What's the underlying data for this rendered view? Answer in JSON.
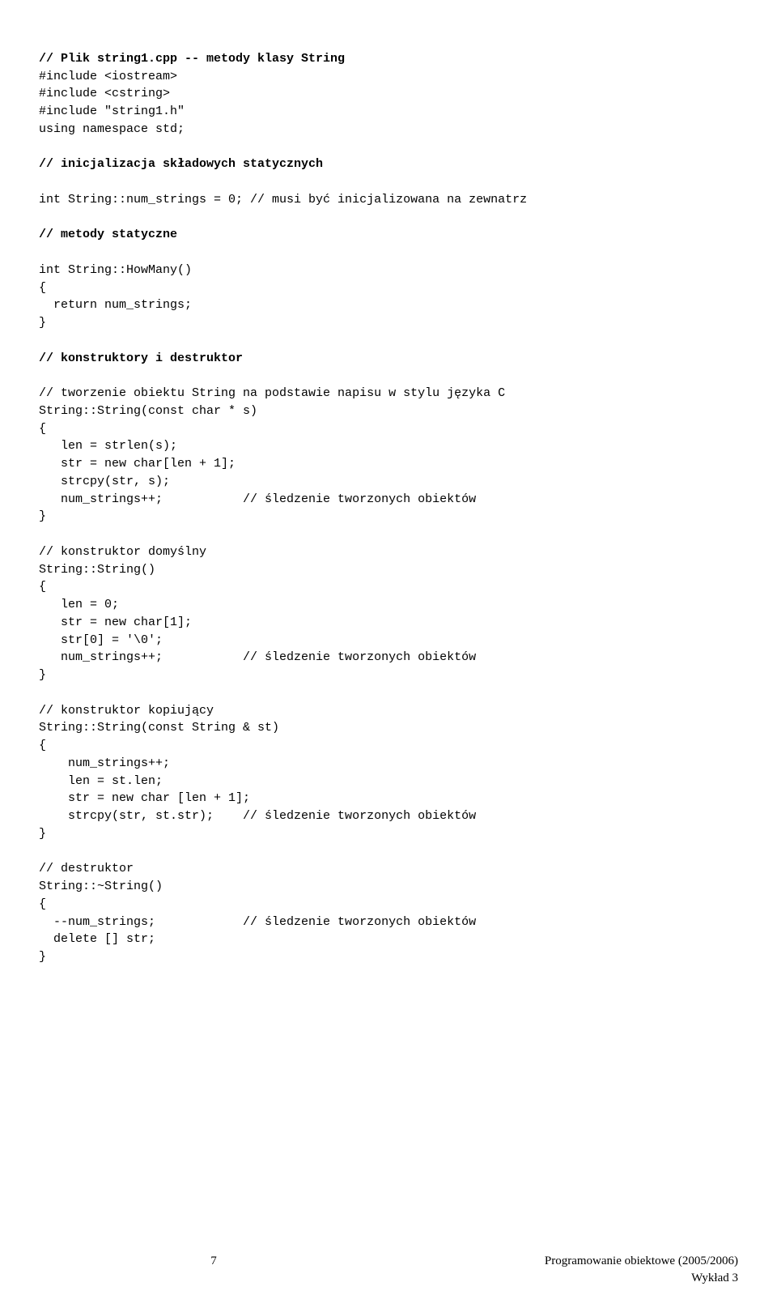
{
  "code": {
    "l1": "// Plik string1.cpp -- metody klasy String",
    "l2": "#include <iostream>",
    "l3": "#include <cstring>",
    "l4": "#include \"string1.h\"",
    "l5": "using namespace std;",
    "l6": "",
    "l7": "// inicjalizacja składowych statycznych",
    "l8": "",
    "l9": "int String::num_strings = 0; // musi być inicjalizowana na zewnatrz",
    "l10": "",
    "l11": "// metody statyczne",
    "l12": "",
    "l13": "int String::HowMany()",
    "l14": "{",
    "l15": "  return num_strings;",
    "l16": "}",
    "l17": "",
    "l18": "// konstruktory i destruktor",
    "l19": "",
    "l20": "// tworzenie obiektu String na podstawie napisu w stylu języka C",
    "l21": "String::String(const char * s)",
    "l22": "{",
    "l23": "   len = strlen(s);",
    "l24": "   str = new char[len + 1];",
    "l25": "   strcpy(str, s);",
    "l26": "   num_strings++;           // śledzenie tworzonych obiektów",
    "l27": "}",
    "l28": "",
    "l29": "// konstruktor domyślny",
    "l30": "String::String()",
    "l31": "{",
    "l32": "   len = 0;",
    "l33": "   str = new char[1];",
    "l34": "   str[0] = '\\0';",
    "l35": "   num_strings++;           // śledzenie tworzonych obiektów",
    "l36": "}",
    "l37": "",
    "l38": "// konstruktor kopiujący",
    "l39": "String::String(const String & st)",
    "l40": "{",
    "l41": "    num_strings++;",
    "l42": "    len = st.len;",
    "l43": "    str = new char [len + 1];",
    "l44": "    strcpy(str, st.str);    // śledzenie tworzonych obiektów",
    "l45": "}",
    "l46": "",
    "l47": "// destruktor",
    "l48": "String::~String()",
    "l49": "{",
    "l50": "  --num_strings;            // śledzenie tworzonych obiektów",
    "l51": "  delete [] str;",
    "l52": "}"
  },
  "footer": {
    "page": "7",
    "right_line1": "Programowanie obiektowe (2005/2006)",
    "right_line2": "Wykład 3"
  }
}
